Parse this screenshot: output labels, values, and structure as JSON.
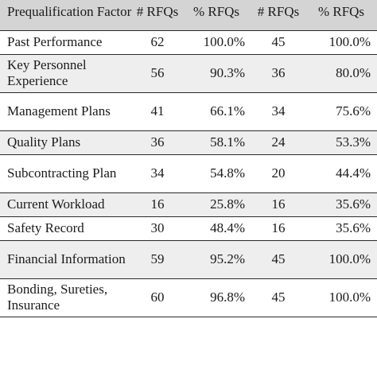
{
  "table": {
    "headers": {
      "factor": "Prequalification Factor",
      "rfqs_a": "# RFQs",
      "pct_a": "% RFQs",
      "rfqs_b": "# RFQs",
      "pct_b": "% RFQs"
    },
    "rows": [
      {
        "factor": "Past Performance",
        "rfqs_a": "62",
        "pct_a": "100.0%",
        "rfqs_b": "45",
        "pct_b": "100.0%"
      },
      {
        "factor": "Key Personnel Experience",
        "rfqs_a": "56",
        "pct_a": "90.3%",
        "rfqs_b": "36",
        "pct_b": "80.0%"
      },
      {
        "factor": "Management Plans",
        "rfqs_a": "41",
        "pct_a": "66.1%",
        "rfqs_b": "34",
        "pct_b": "75.6%"
      },
      {
        "factor": "Quality Plans",
        "rfqs_a": "36",
        "pct_a": "58.1%",
        "rfqs_b": "24",
        "pct_b": "53.3%"
      },
      {
        "factor": "Subcontracting Plan",
        "rfqs_a": "34",
        "pct_a": "54.8%",
        "rfqs_b": "20",
        "pct_b": "44.4%"
      },
      {
        "factor": "Current Workload",
        "rfqs_a": "16",
        "pct_a": "25.8%",
        "rfqs_b": "16",
        "pct_b": "35.6%"
      },
      {
        "factor": "Safety Record",
        "rfqs_a": "30",
        "pct_a": "48.4%",
        "rfqs_b": "16",
        "pct_b": "35.6%"
      },
      {
        "factor": "Financial Information",
        "rfqs_a": "59",
        "pct_a": "95.2%",
        "rfqs_b": "45",
        "pct_b": "100.0%"
      },
      {
        "factor": "Bonding, Sureties, Insurance",
        "rfqs_a": "60",
        "pct_a": "96.8%",
        "rfqs_b": "45",
        "pct_b": "100.0%"
      }
    ]
  }
}
